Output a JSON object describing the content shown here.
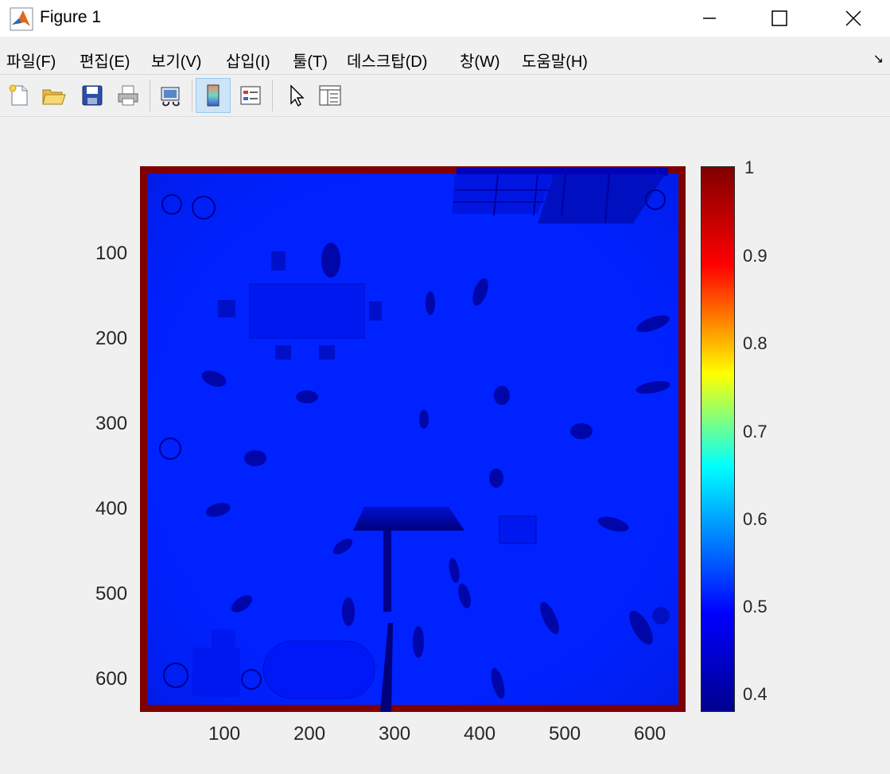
{
  "window": {
    "title": "Figure 1"
  },
  "menu": {
    "items": [
      "파일(F)",
      "편집(E)",
      "보기(V)",
      "삽입(I)",
      "툴(T)",
      "데스크탑(D)",
      "창(W)",
      "도움말(H)"
    ]
  },
  "toolbar": {
    "buttons": [
      {
        "icon": "new-figure-icon"
      },
      {
        "icon": "open-file-icon"
      },
      {
        "icon": "save-icon"
      },
      {
        "icon": "print-icon"
      },
      {
        "icon": "link-plot-icon"
      },
      {
        "icon": "insert-colorbar-icon",
        "active": true
      },
      {
        "icon": "insert-legend-icon"
      },
      {
        "icon": "edit-plot-icon"
      },
      {
        "icon": "property-inspector-icon"
      }
    ]
  },
  "axes": {
    "x_ticks": [
      "100",
      "200",
      "300",
      "400",
      "500",
      "600"
    ],
    "y_ticks": [
      "100",
      "200",
      "300",
      "400",
      "500",
      "600"
    ]
  },
  "colorbar": {
    "ticks": [
      "1",
      "0.9",
      "0.8",
      "0.7",
      "0.6",
      "0.5",
      "0.4"
    ],
    "colormap": "jet"
  },
  "colors": {
    "image_border": "#7f0000",
    "image_fill": "#0022ff",
    "object_dark": "#0000a8"
  }
}
